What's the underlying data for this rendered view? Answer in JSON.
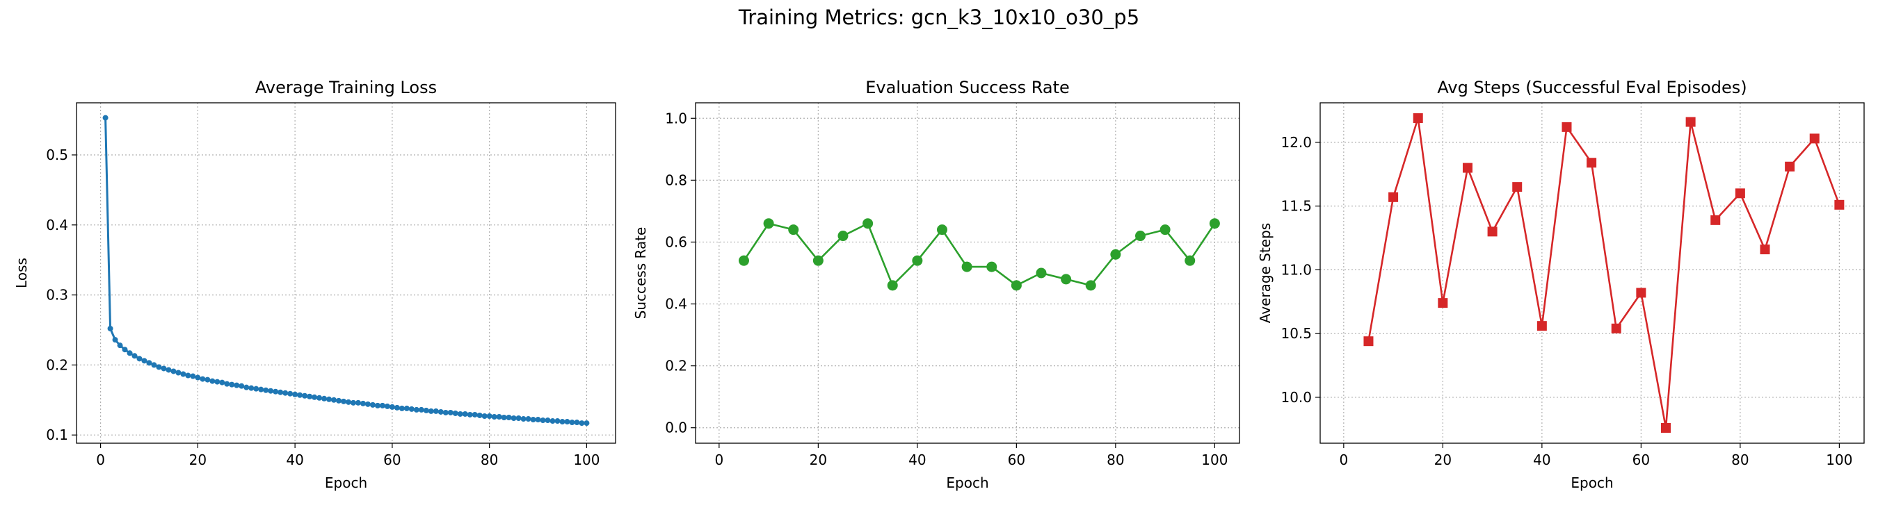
{
  "figure": {
    "title": "Training Metrics: gcn_k3_10x10_o30_p5"
  },
  "chart_data": [
    {
      "type": "line",
      "title": "Average Training Loss",
      "xlabel": "Epoch",
      "ylabel": "Loss",
      "xlim": [
        -4.95,
        105.95
      ],
      "ylim": [
        0.0883,
        0.5744
      ],
      "xticks": [
        0,
        20,
        40,
        60,
        80,
        100
      ],
      "yticks": [
        0.1,
        0.2,
        0.3,
        0.4,
        0.5
      ],
      "ytick_labels": [
        "0.1",
        "0.2",
        "0.3",
        "0.4",
        "0.5"
      ],
      "grid": true,
      "marker": "circle-small",
      "color": "#1f77b4",
      "series": [
        {
          "x": [
            1,
            2,
            3,
            4,
            5,
            6,
            7,
            8,
            9,
            10,
            11,
            12,
            13,
            14,
            15,
            16,
            17,
            18,
            19,
            20,
            21,
            22,
            23,
            24,
            25,
            26,
            27,
            28,
            29,
            30,
            31,
            32,
            33,
            34,
            35,
            36,
            37,
            38,
            39,
            40,
            41,
            42,
            43,
            44,
            45,
            46,
            47,
            48,
            49,
            50,
            51,
            52,
            53,
            54,
            55,
            56,
            57,
            58,
            59,
            60,
            61,
            62,
            63,
            64,
            65,
            66,
            67,
            68,
            69,
            70,
            71,
            72,
            73,
            74,
            75,
            76,
            77,
            78,
            79,
            80,
            81,
            82,
            83,
            84,
            85,
            86,
            87,
            88,
            89,
            90,
            91,
            92,
            93,
            94,
            95,
            96,
            97,
            98,
            99,
            100
          ],
          "values": [
            0.553,
            0.252,
            0.236,
            0.228,
            0.222,
            0.217,
            0.213,
            0.209,
            0.206,
            0.203,
            0.2,
            0.197,
            0.195,
            0.193,
            0.191,
            0.189,
            0.187,
            0.185,
            0.184,
            0.182,
            0.18,
            0.179,
            0.177,
            0.176,
            0.175,
            0.173,
            0.172,
            0.171,
            0.17,
            0.168,
            0.167,
            0.166,
            0.165,
            0.164,
            0.163,
            0.162,
            0.161,
            0.16,
            0.159,
            0.158,
            0.157,
            0.156,
            0.155,
            0.154,
            0.153,
            0.152,
            0.151,
            0.15,
            0.149,
            0.148,
            0.147,
            0.146,
            0.146,
            0.145,
            0.144,
            0.143,
            0.142,
            0.142,
            0.141,
            0.14,
            0.139,
            0.138,
            0.138,
            0.137,
            0.136,
            0.136,
            0.135,
            0.134,
            0.134,
            0.133,
            0.132,
            0.132,
            0.131,
            0.13,
            0.13,
            0.129,
            0.129,
            0.128,
            0.127,
            0.127,
            0.126,
            0.126,
            0.125,
            0.125,
            0.124,
            0.124,
            0.123,
            0.123,
            0.122,
            0.122,
            0.121,
            0.121,
            0.12,
            0.12,
            0.119,
            0.119,
            0.118,
            0.118,
            0.117,
            0.117
          ]
        }
      ]
    },
    {
      "type": "line",
      "title": "Evaluation Success Rate",
      "xlabel": "Epoch",
      "ylabel": "Success Rate",
      "xlim": [
        -4.75,
        105.0
      ],
      "ylim": [
        -0.05,
        1.05
      ],
      "xticks": [
        0,
        20,
        40,
        60,
        80,
        100
      ],
      "yticks": [
        0.0,
        0.2,
        0.4,
        0.6,
        0.8,
        1.0
      ],
      "ytick_labels": [
        "0.0",
        "0.2",
        "0.4",
        "0.6",
        "0.8",
        "1.0"
      ],
      "grid": true,
      "marker": "circle",
      "color": "#2ca02c",
      "series": [
        {
          "x": [
            5,
            10,
            15,
            20,
            25,
            30,
            35,
            40,
            45,
            50,
            55,
            60,
            65,
            70,
            75,
            80,
            85,
            90,
            95,
            100
          ],
          "values": [
            0.54,
            0.66,
            0.64,
            0.54,
            0.62,
            0.66,
            0.46,
            0.54,
            0.64,
            0.52,
            0.52,
            0.46,
            0.5,
            0.48,
            0.46,
            0.56,
            0.62,
            0.64,
            0.54,
            0.66
          ]
        }
      ]
    },
    {
      "type": "line",
      "title": "Avg Steps (Successful Eval Episodes)",
      "xlabel": "Epoch",
      "ylabel": "Average Steps",
      "xlim": [
        -4.75,
        105.0
      ],
      "ylim": [
        9.64,
        12.31
      ],
      "xticks": [
        0,
        20,
        40,
        60,
        80,
        100
      ],
      "yticks": [
        10.0,
        10.5,
        11.0,
        11.5,
        12.0
      ],
      "ytick_labels": [
        "10.0",
        "10.5",
        "11.0",
        "11.5",
        "12.0"
      ],
      "grid": true,
      "marker": "square",
      "color": "#d62728",
      "series": [
        {
          "x": [
            5,
            10,
            15,
            20,
            25,
            30,
            35,
            40,
            45,
            50,
            55,
            60,
            65,
            70,
            75,
            80,
            85,
            90,
            95,
            100
          ],
          "values": [
            10.44,
            11.57,
            12.19,
            10.74,
            11.8,
            11.3,
            11.65,
            10.56,
            12.12,
            11.84,
            10.54,
            10.82,
            9.76,
            12.16,
            11.39,
            11.6,
            11.16,
            11.81,
            12.03,
            11.51
          ]
        }
      ]
    }
  ]
}
